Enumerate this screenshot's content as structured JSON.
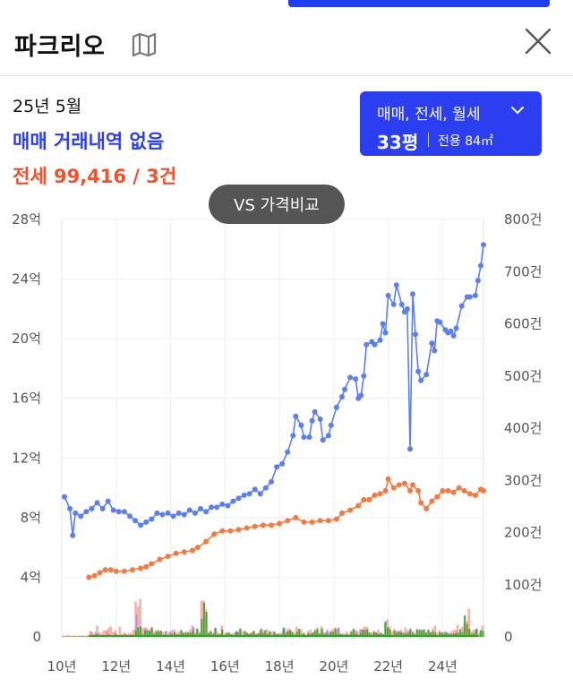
{
  "header": {
    "title": "파크리오",
    "map_icon": "map-icon",
    "close_icon": "close-icon"
  },
  "summary": {
    "period": "25년 5월",
    "sale_status": "매매 거래내역 없음",
    "jeonse": "전세 99,416 / 3건"
  },
  "filter": {
    "type_label": "매매, 전세, 월세",
    "size_label": "33평",
    "area_label": "전용 84㎡"
  },
  "vs_button": {
    "label": "VS 가격비교"
  },
  "colors": {
    "accent": "#2b3ff0",
    "sale": "#5b7ff0",
    "jeonse": "#f47a40",
    "green_bar": "#27a527",
    "pink_bar": "#f7a8a0",
    "purple_bar": "#8d8ef5"
  },
  "chart_data": {
    "type": "line",
    "x_ticks": [
      "10년",
      "12년",
      "14년",
      "16년",
      "18년",
      "20년",
      "22년",
      "24년"
    ],
    "y_left_ticks": [
      "0",
      "4억",
      "8억",
      "12억",
      "16억",
      "20억",
      "24억",
      "28억"
    ],
    "y_right_ticks": [
      "0",
      "100건",
      "200건",
      "300건",
      "400건",
      "500건",
      "600건",
      "700건",
      "800건"
    ],
    "y_left_range_eok": [
      0,
      28
    ],
    "y_right_range_count": [
      0,
      800
    ],
    "x_range_year": [
      2010,
      2025.5
    ],
    "grid": true,
    "series": [
      {
        "key": "sale",
        "unit": "억",
        "points": [
          [
            2010.1,
            9.4
          ],
          [
            2010.3,
            8.6
          ],
          [
            2010.4,
            6.8
          ],
          [
            2010.5,
            8.3
          ],
          [
            2010.7,
            8.1
          ],
          [
            2010.9,
            8.4
          ],
          [
            2011.1,
            8.6
          ],
          [
            2011.3,
            9.0
          ],
          [
            2011.5,
            8.6
          ],
          [
            2011.7,
            9.1
          ],
          [
            2011.9,
            8.5
          ],
          [
            2012.1,
            8.4
          ],
          [
            2012.3,
            8.4
          ],
          [
            2012.5,
            8.1
          ],
          [
            2012.7,
            7.8
          ],
          [
            2012.9,
            7.5
          ],
          [
            2013.1,
            7.7
          ],
          [
            2013.3,
            7.9
          ],
          [
            2013.5,
            8.3
          ],
          [
            2013.7,
            8.2
          ],
          [
            2013.9,
            8.3
          ],
          [
            2014.1,
            8.1
          ],
          [
            2014.3,
            8.3
          ],
          [
            2014.5,
            8.2
          ],
          [
            2014.7,
            8.5
          ],
          [
            2014.9,
            8.3
          ],
          [
            2015.1,
            8.6
          ],
          [
            2015.3,
            8.4
          ],
          [
            2015.5,
            8.7
          ],
          [
            2015.7,
            8.7
          ],
          [
            2015.9,
            8.9
          ],
          [
            2016.1,
            8.8
          ],
          [
            2016.3,
            9.1
          ],
          [
            2016.5,
            9.3
          ],
          [
            2016.7,
            9.5
          ],
          [
            2016.9,
            9.6
          ],
          [
            2017.1,
            9.9
          ],
          [
            2017.3,
            9.6
          ],
          [
            2017.5,
            10.0
          ],
          [
            2017.7,
            10.4
          ],
          [
            2017.9,
            11.4
          ],
          [
            2018.1,
            11.6
          ],
          [
            2018.3,
            12.4
          ],
          [
            2018.5,
            13.5
          ],
          [
            2018.6,
            14.8
          ],
          [
            2018.8,
            14.2
          ],
          [
            2018.9,
            13.4
          ],
          [
            2019.1,
            13.4
          ],
          [
            2019.2,
            14.5
          ],
          [
            2019.3,
            15.1
          ],
          [
            2019.5,
            14.6
          ],
          [
            2019.6,
            13.2
          ],
          [
            2019.8,
            13.5
          ],
          [
            2019.9,
            14.2
          ],
          [
            2020.1,
            15.4
          ],
          [
            2020.3,
            16.1
          ],
          [
            2020.4,
            16.6
          ],
          [
            2020.6,
            17.4
          ],
          [
            2020.8,
            17.3
          ],
          [
            2020.9,
            16.0
          ],
          [
            2021.0,
            16.2
          ],
          [
            2021.1,
            17.5
          ],
          [
            2021.2,
            19.6
          ],
          [
            2021.4,
            19.8
          ],
          [
            2021.5,
            19.6
          ],
          [
            2021.7,
            19.9
          ],
          [
            2021.8,
            21.0
          ],
          [
            2021.9,
            20.4
          ],
          [
            2022.0,
            22.9
          ],
          [
            2022.2,
            22.3
          ],
          [
            2022.3,
            23.6
          ],
          [
            2022.5,
            22.3
          ],
          [
            2022.6,
            21.8
          ],
          [
            2022.7,
            22.0
          ],
          [
            2022.8,
            12.6
          ],
          [
            2022.9,
            23.0
          ],
          [
            2023.0,
            20.3
          ],
          [
            2023.1,
            17.8
          ],
          [
            2023.2,
            17.2
          ],
          [
            2023.4,
            17.6
          ],
          [
            2023.6,
            19.7
          ],
          [
            2023.7,
            19.2
          ],
          [
            2023.8,
            21.2
          ],
          [
            2023.9,
            21.1
          ],
          [
            2024.1,
            20.6
          ],
          [
            2024.2,
            20.4
          ],
          [
            2024.3,
            20.5
          ],
          [
            2024.4,
            20.2
          ],
          [
            2024.5,
            20.7
          ],
          [
            2024.7,
            22.2
          ],
          [
            2024.9,
            22.8
          ],
          [
            2025.0,
            22.8
          ],
          [
            2025.2,
            22.9
          ],
          [
            2025.3,
            23.9
          ],
          [
            2025.4,
            24.9
          ],
          [
            2025.5,
            26.3
          ]
        ]
      },
      {
        "key": "jeonse",
        "unit": "억",
        "points": [
          [
            2011.0,
            4.0
          ],
          [
            2011.2,
            4.1
          ],
          [
            2011.4,
            4.3
          ],
          [
            2011.6,
            4.5
          ],
          [
            2011.8,
            4.5
          ],
          [
            2012.0,
            4.4
          ],
          [
            2012.3,
            4.4
          ],
          [
            2012.6,
            4.5
          ],
          [
            2012.9,
            4.6
          ],
          [
            2013.1,
            4.7
          ],
          [
            2013.3,
            4.9
          ],
          [
            2013.6,
            5.2
          ],
          [
            2013.9,
            5.4
          ],
          [
            2014.2,
            5.6
          ],
          [
            2014.5,
            5.7
          ],
          [
            2014.8,
            5.8
          ],
          [
            2015.0,
            6.0
          ],
          [
            2015.3,
            6.4
          ],
          [
            2015.6,
            6.9
          ],
          [
            2015.9,
            7.1
          ],
          [
            2016.2,
            7.1
          ],
          [
            2016.5,
            7.2
          ],
          [
            2016.8,
            7.3
          ],
          [
            2017.1,
            7.4
          ],
          [
            2017.4,
            7.5
          ],
          [
            2017.7,
            7.5
          ],
          [
            2018.0,
            7.6
          ],
          [
            2018.3,
            7.8
          ],
          [
            2018.6,
            8.0
          ],
          [
            2018.9,
            7.7
          ],
          [
            2019.2,
            7.7
          ],
          [
            2019.5,
            7.8
          ],
          [
            2019.8,
            7.8
          ],
          [
            2020.1,
            7.9
          ],
          [
            2020.3,
            8.3
          ],
          [
            2020.6,
            8.5
          ],
          [
            2020.9,
            8.8
          ],
          [
            2021.1,
            9.2
          ],
          [
            2021.3,
            9.2
          ],
          [
            2021.5,
            9.5
          ],
          [
            2021.7,
            9.6
          ],
          [
            2021.9,
            9.8
          ],
          [
            2022.0,
            10.6
          ],
          [
            2022.2,
            10.0
          ],
          [
            2022.4,
            10.2
          ],
          [
            2022.6,
            10.3
          ],
          [
            2022.8,
            9.8
          ],
          [
            2022.9,
            10.2
          ],
          [
            2023.1,
            9.8
          ],
          [
            2023.2,
            9.0
          ],
          [
            2023.4,
            8.6
          ],
          [
            2023.6,
            9.1
          ],
          [
            2023.8,
            9.4
          ],
          [
            2024.0,
            9.8
          ],
          [
            2024.2,
            9.8
          ],
          [
            2024.4,
            9.7
          ],
          [
            2024.6,
            10.0
          ],
          [
            2024.8,
            9.8
          ],
          [
            2025.0,
            9.6
          ],
          [
            2025.2,
            9.5
          ],
          [
            2025.4,
            9.9
          ],
          [
            2025.5,
            9.8
          ]
        ]
      }
    ],
    "volume_bars": {
      "unit": "건",
      "axis": "right",
      "note": "monthly transaction counts (sale, jeonse, monthly-rent), stacked near bottom",
      "peaks": [
        [
          2012.8,
          95
        ],
        [
          2015.2,
          75
        ],
        [
          2022.0,
          35
        ],
        [
          2024.9,
          50
        ]
      ]
    }
  }
}
